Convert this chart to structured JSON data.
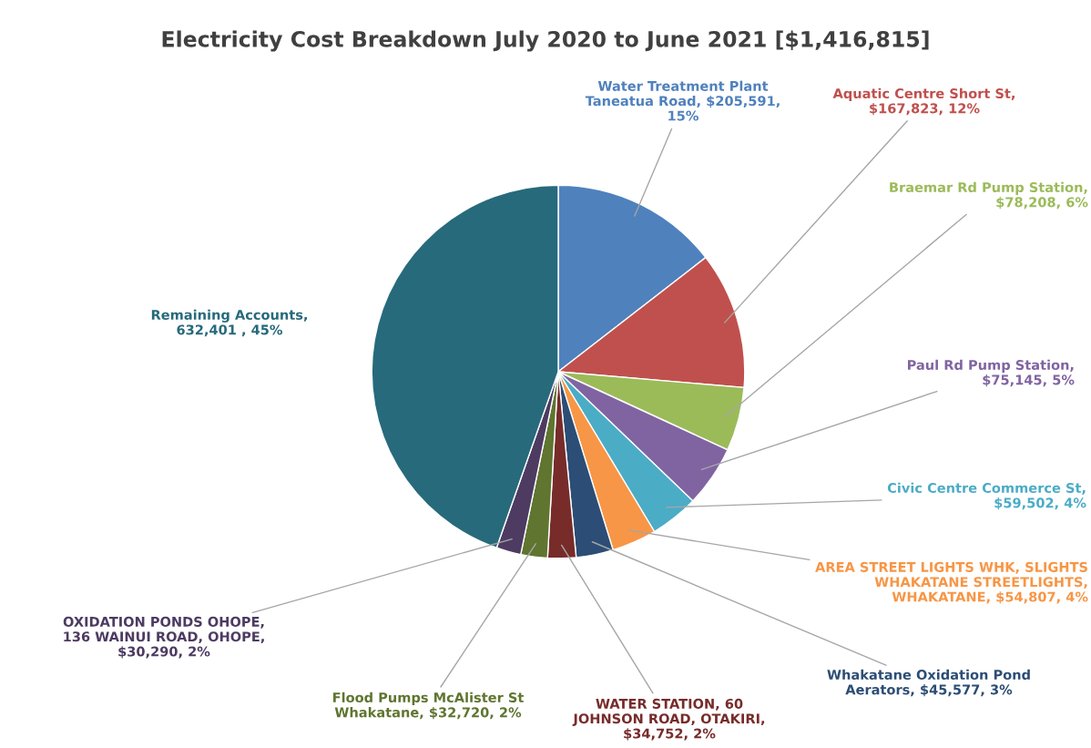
{
  "chart_data": {
    "type": "pie",
    "title": "Electricity Cost Breakdown July 2020 to June 2021 [$1,416,815]",
    "categories": [
      "Water Treatment Plant\nTaneatua Road, $205,591,\n15%",
      "Aquatic Centre Short St,\n$167,823, 12%",
      "Braemar Rd Pump Station,\n$78,208, 6%",
      "Paul Rd Pump Station,\n$75,145, 5%",
      "Civic Centre Commerce St,\n$59,502, 4%",
      "AREA STREET LIGHTS WHK, SLIGHTS\nWHAKATANE STREETLIGHTS,\nWHAKATANE, $54,807, 4%",
      "Whakatane Oxidation Pond\nAerators, $45,577, 3%",
      "WATER STATION, 60\nJOHNSON ROAD, OTAKIRI,\n$34,752, 2%",
      "Flood Pumps McAlister St\nWhakatane, $32,720, 2%",
      "OXIDATION PONDS OHOPE,\n136 WAINUI ROAD, OHOPE,\n$30,290, 2%",
      "Remaining Accounts,\n632,401 , 45%"
    ],
    "values": [
      205591,
      167823,
      78208,
      75145,
      59502,
      54807,
      45577,
      34752,
      32720,
      30290,
      632401
    ],
    "colors": [
      "#4f81bd",
      "#c0504d",
      "#9bbb59",
      "#8064a2",
      "#4bacc6",
      "#f79646",
      "#2c4d75",
      "#772c2a",
      "#5f7530",
      "#4d3b62",
      "#276a7c"
    ],
    "legend": false
  }
}
